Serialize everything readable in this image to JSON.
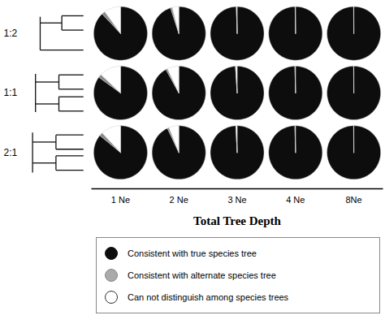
{
  "chart_data": {
    "type": "pie",
    "xlabel": "Total Tree Depth",
    "row_labels": [
      "1:2",
      "1:1",
      "2:1"
    ],
    "col_labels": [
      "1 Ne",
      "2 Ne",
      "3 Ne",
      "4 Ne",
      "8Ne"
    ],
    "categories": [
      "Consistent with true species tree",
      "Consistent with alternate species tree",
      "Can not distinguish among species trees"
    ],
    "colors": [
      "#0d0d0d",
      "#888888",
      "#ffffff"
    ],
    "legend_colors": [
      "#0d0d0d",
      "#aaaaaa",
      "#ffffff"
    ],
    "tree_color": "#111111",
    "legend": "bottom",
    "values": [
      [
        [
          88,
          2,
          10
        ],
        [
          95,
          1,
          4
        ],
        [
          99.5,
          0.1,
          0.4
        ],
        [
          99.8,
          0.05,
          0.15
        ],
        [
          99.9,
          0.05,
          0.05
        ]
      ],
      [
        [
          85,
          2,
          13
        ],
        [
          92,
          1,
          7
        ],
        [
          99.0,
          0.1,
          0.9
        ],
        [
          99.7,
          0.05,
          0.25
        ],
        [
          99.9,
          0.05,
          0.05
        ]
      ],
      [
        [
          86,
          2,
          12
        ],
        [
          93,
          1,
          6
        ],
        [
          99.2,
          0.1,
          0.7
        ],
        [
          99.7,
          0.05,
          0.25
        ],
        [
          99.9,
          0.05,
          0.05
        ]
      ]
    ]
  }
}
